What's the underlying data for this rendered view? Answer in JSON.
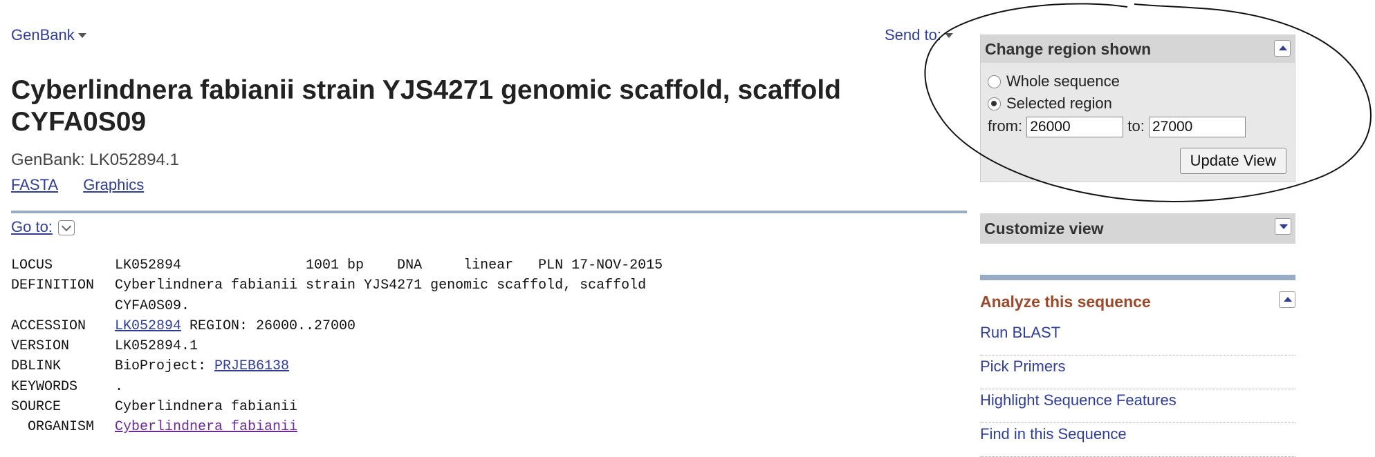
{
  "header": {
    "db_label": "GenBank",
    "send_to_label": "Send to:"
  },
  "record": {
    "title": "Cyberlindnera fabianii strain YJS4271 genomic scaffold, scaffold CYFA0S09",
    "accession_line": "GenBank: LK052894.1",
    "views": [
      "FASTA",
      "Graphics"
    ]
  },
  "goto_label": "Go to:",
  "flatfile": {
    "locus": {
      "key": "LOCUS",
      "value": "LK052894               1001 bp    DNA     linear   PLN 17-NOV-2015"
    },
    "definition": {
      "key": "DEFINITION",
      "value": "Cyberlindnera fabianii strain YJS4271 genomic scaffold, scaffold",
      "cont": "CYFA0S09."
    },
    "accession": {
      "key": "ACCESSION",
      "link": "LK052894",
      "rest": " REGION: 26000..27000"
    },
    "version": {
      "key": "VERSION",
      "value": "LK052894.1"
    },
    "dblink": {
      "key": "DBLINK",
      "prefix": "BioProject: ",
      "link": "PRJEB6138"
    },
    "keywords": {
      "key": "KEYWORDS",
      "value": "."
    },
    "source": {
      "key": "SOURCE",
      "value": "Cyberlindnera fabianii"
    },
    "organism": {
      "key": "  ORGANISM",
      "link": "Cyberlindnera fabianii"
    }
  },
  "change_region": {
    "title": "Change region shown",
    "whole_label": "Whole sequence",
    "selected_label": "Selected region",
    "selected": "selected",
    "from_label": "from:",
    "from_value": "26000",
    "to_label": "to:",
    "to_value": "27000",
    "update_label": "Update View"
  },
  "customize": {
    "title": "Customize view"
  },
  "analyze": {
    "title": "Analyze this sequence",
    "tools": [
      "Run BLAST",
      "Pick Primers",
      "Highlight Sequence Features",
      "Find in this Sequence"
    ]
  },
  "colors": {
    "link": "#2f3d95",
    "accent_rule": "#97abc4",
    "analyze_title": "#9a4a2a",
    "panel_bg": "#e8e8e8"
  }
}
